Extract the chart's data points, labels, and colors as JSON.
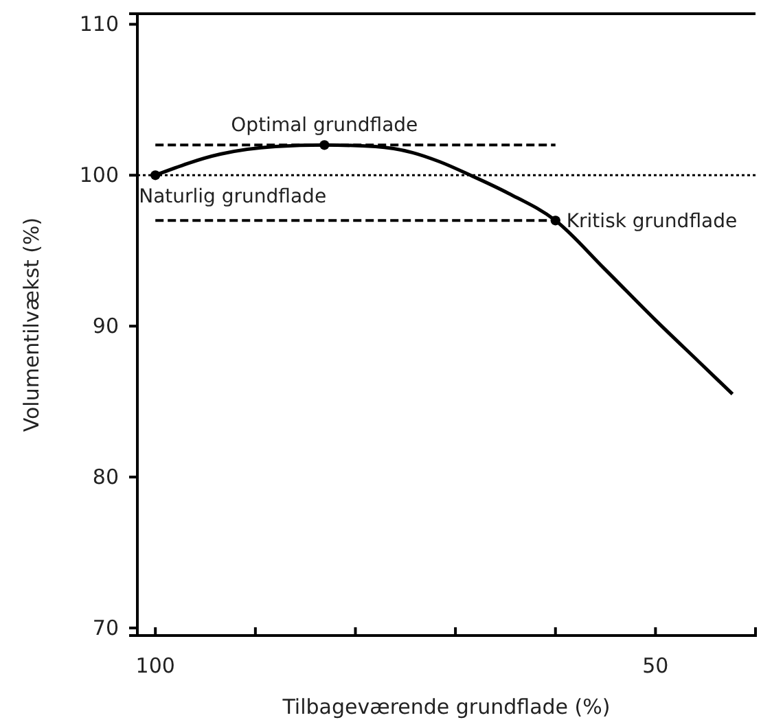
{
  "chart_data": {
    "type": "line",
    "xlabel": "Tilbageværende grundflade (%)",
    "ylabel": "Volumentilvækst (%)",
    "xlim": [
      101.8,
      40
    ],
    "xticks": [
      100,
      {
        "value": 90,
        "label": null
      },
      {
        "value": 80,
        "label": null
      },
      {
        "value": 70,
        "label": null
      },
      {
        "value": 60,
        "label": null
      },
      50,
      {
        "value": 40,
        "label": null
      }
    ],
    "ylim": [
      69.5,
      110.7
    ],
    "yticks": [
      70,
      80,
      90,
      100,
      110
    ],
    "grid": false,
    "series": [
      {
        "type": "line",
        "color": "#000000",
        "marker": "none",
        "line_style": "solid",
        "x": [
          100,
          93.5,
          88,
          83.1,
          78,
          74.3,
          71.6,
          68.5,
          64.7,
          60,
          55.1,
          50,
          45.6,
          42.3
        ],
        "values": [
          100,
          101.4,
          101.9,
          102,
          101.9,
          101.5,
          100.9,
          100,
          98.8,
          97,
          93.8,
          90.4,
          87.6,
          85.5
        ]
      },
      {
        "type": "line",
        "color": "#000000",
        "marker": "none",
        "line_style": "dashed",
        "x": [
          100,
          60
        ],
        "values": [
          102,
          102
        ]
      },
      {
        "type": "line",
        "color": "#000000",
        "marker": "none",
        "line_style": "dashed",
        "x": [
          100,
          60
        ],
        "values": [
          97,
          97
        ]
      },
      {
        "type": "scatter",
        "color": "#000000",
        "marker": "circle",
        "x": [
          100,
          83.1,
          60
        ],
        "values": [
          100,
          102,
          97
        ]
      }
    ],
    "ref_lines": [
      {
        "axis": "y",
        "value": 100,
        "color": "#000000",
        "line_style": "dotted"
      }
    ],
    "annotations": [
      {
        "text": "Optimal grundflade",
        "x": 83.1,
        "y": 102
      },
      {
        "text": "Naturlig grundflade",
        "x": 100,
        "y": 100
      },
      {
        "text": "Kritisk grundflade",
        "x": 60,
        "y": 97
      }
    ]
  }
}
